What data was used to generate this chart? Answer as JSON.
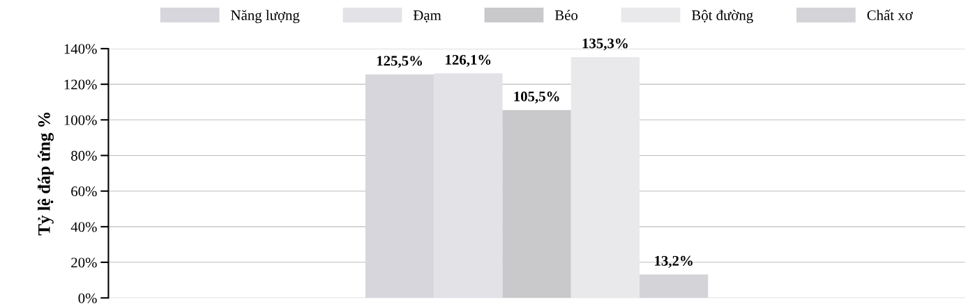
{
  "chart_data": {
    "type": "bar",
    "ylabel": "Tỷ lệ đáp ứng %",
    "categories": [
      null
    ],
    "series": [
      {
        "name": "Năng lượng",
        "color": "#d6d6dc",
        "values": [
          125.5
        ],
        "value_labels": [
          "125,5%"
        ]
      },
      {
        "name": "Đạm",
        "color": "#e2e2e7",
        "values": [
          126.1
        ],
        "value_labels": [
          "126,1%"
        ]
      },
      {
        "name": "Béo",
        "color": "#c9c9cc",
        "values": [
          105.5
        ],
        "value_labels": [
          "105,5%"
        ]
      },
      {
        "name": "Bột đường",
        "color": "#e9e9ec",
        "values": [
          135.3
        ],
        "value_labels": [
          "135,3%"
        ]
      },
      {
        "name": "Chất xơ",
        "color": "#d3d3d8",
        "values": [
          13.2
        ],
        "value_labels": [
          "13,2%"
        ]
      }
    ],
    "ylim": [
      0,
      140
    ],
    "yticks": [
      {
        "value": 0,
        "label": "0%"
      },
      {
        "value": 20,
        "label": "20%"
      },
      {
        "value": 40,
        "label": "40%"
      },
      {
        "value": 60,
        "label": "60%"
      },
      {
        "value": 80,
        "label": "80%"
      },
      {
        "value": 100,
        "label": "100%"
      },
      {
        "value": 120,
        "label": "120%"
      },
      {
        "value": 140,
        "label": "140%"
      }
    ],
    "grid": "y",
    "legend": "top"
  }
}
